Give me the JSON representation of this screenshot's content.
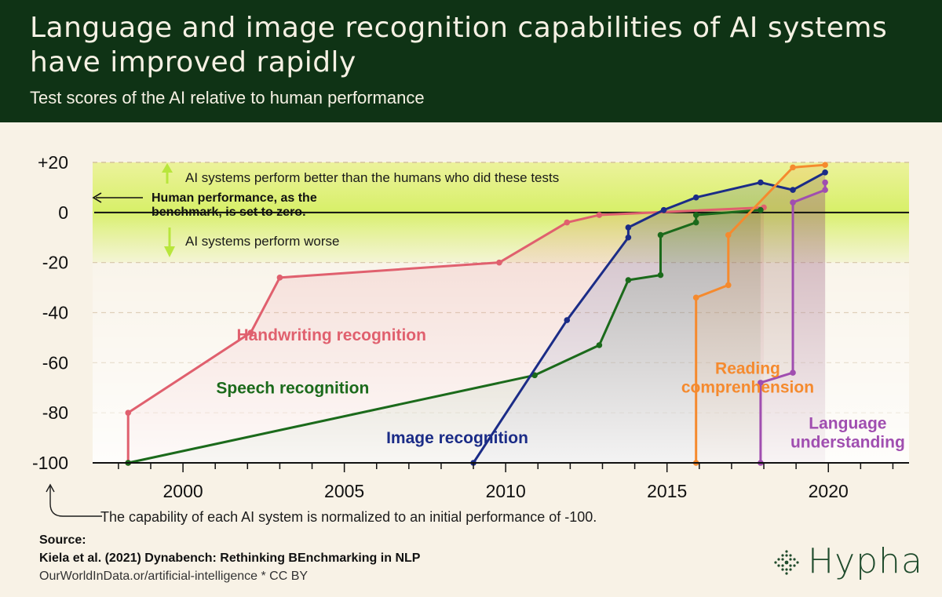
{
  "title": "Language and image recognition capabilities of AI systems have improved rapidly",
  "subtitle": "Test scores of the AI relative to human performance",
  "note": "The capability of each AI system is normalized to an initial performance of -100.",
  "source": {
    "label": "Source:",
    "reference": "Kiela et al. (2021) Dynabench: Rethinking BEnchmarking in NLP",
    "url": "OurWorldInData.or/artificial-intelligence * CC BY"
  },
  "logo": {
    "text": "Hypha",
    "icon": "dotted-diamond-logo-icon"
  },
  "chart_data": {
    "type": "line",
    "xlim": [
      1997.2,
      2022.5
    ],
    "ylim": [
      -100,
      20
    ],
    "x_ticks": [
      {
        "value": 2000,
        "label": "2000"
      },
      {
        "value": 2005,
        "label": "2005"
      },
      {
        "value": 2010,
        "label": "2010"
      },
      {
        "value": 2015,
        "label": "2015"
      },
      {
        "value": 2020,
        "label": "2020"
      }
    ],
    "y_ticks": [
      {
        "value": 20,
        "label": "+20"
      },
      {
        "value": 0,
        "label": "0"
      },
      {
        "value": -20,
        "label": "-20"
      },
      {
        "value": -40,
        "label": "-40"
      },
      {
        "value": -60,
        "label": "-60"
      },
      {
        "value": -80,
        "label": "-80"
      },
      {
        "value": -100,
        "label": "-100"
      }
    ],
    "grid": "horizontal dashed",
    "annotations": {
      "better": "AI systems perform better than the humans who did these tests",
      "baseline_line1": "Human performance, as the",
      "baseline_line2": "benchmark, is set to zero.",
      "worse": "AI systems perform worse"
    },
    "series": [
      {
        "name": "Handwriting recognition",
        "color": "#e0606e",
        "label_lines": [
          "Handwriting recognition"
        ],
        "label_at": {
          "x": 2004.6,
          "y": -49
        },
        "points": [
          [
            1998.3,
            -100
          ],
          [
            1998.3,
            -80
          ],
          [
            2002.1,
            -48
          ],
          [
            2003.0,
            -26
          ],
          [
            2009.8,
            -20
          ],
          [
            2011.9,
            -4
          ],
          [
            2012.9,
            -1
          ],
          [
            2018.0,
            2
          ]
        ]
      },
      {
        "name": "Speech recognition",
        "color": "#1b6a1b",
        "label_lines": [
          "Speech recognition"
        ],
        "label_at": {
          "x": 2003.4,
          "y": -70
        },
        "points": [
          [
            1998.3,
            -100
          ],
          [
            2010.9,
            -65
          ],
          [
            2012.9,
            -53
          ],
          [
            2013.8,
            -27
          ],
          [
            2014.8,
            -25
          ],
          [
            2014.8,
            -9
          ],
          [
            2015.9,
            -4
          ],
          [
            2015.9,
            -1
          ],
          [
            2017.9,
            1
          ]
        ]
      },
      {
        "name": "Image recognition",
        "color": "#1b2c87",
        "label_lines": [
          "Image recognition"
        ],
        "label_at": {
          "x": 2008.5,
          "y": -90
        },
        "points": [
          [
            2009.0,
            -100
          ],
          [
            2011.9,
            -43
          ],
          [
            2013.8,
            -10
          ],
          [
            2013.8,
            -6
          ],
          [
            2014.9,
            1
          ],
          [
            2015.9,
            6
          ],
          [
            2017.9,
            12
          ],
          [
            2018.9,
            9
          ],
          [
            2019.9,
            16
          ]
        ]
      },
      {
        "name": "Reading comprehension",
        "color": "#f58a2e",
        "label_lines": [
          "Reading",
          "comprenhension"
        ],
        "label_at": {
          "x": 2017.5,
          "y": -66
        },
        "points": [
          [
            2015.9,
            -100
          ],
          [
            2015.9,
            -34
          ],
          [
            2016.9,
            -29
          ],
          [
            2016.9,
            -9
          ],
          [
            2018.9,
            18
          ],
          [
            2019.9,
            19
          ]
        ]
      },
      {
        "name": "Language understanding",
        "color": "#a04eb0",
        "label_lines": [
          "Language",
          "understanding"
        ],
        "label_at": {
          "x": 2020.6,
          "y": -88
        },
        "points": [
          [
            2017.9,
            -100
          ],
          [
            2017.9,
            -68
          ],
          [
            2018.9,
            -64
          ],
          [
            2018.9,
            4
          ],
          [
            2019.9,
            9
          ],
          [
            2019.9,
            12
          ]
        ]
      }
    ]
  }
}
